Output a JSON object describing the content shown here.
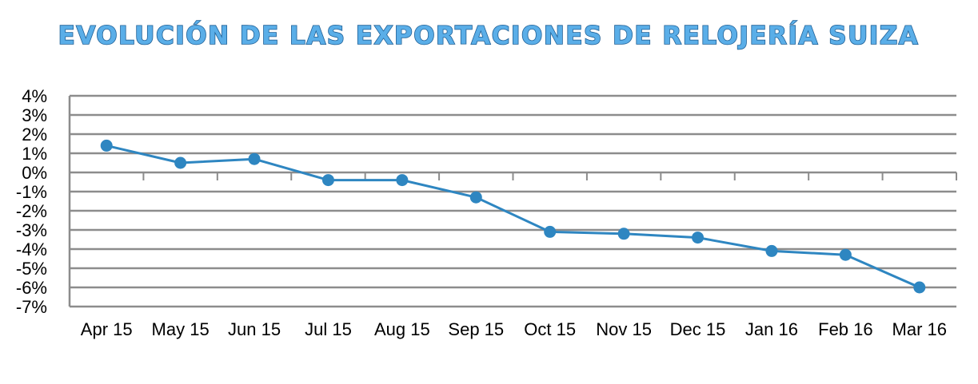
{
  "chart_data": {
    "type": "line",
    "title": "EVOLUCIÓN DE LAS EXPORTACIONES DE RELOJERÍA SUIZA",
    "xlabel": "",
    "ylabel": "",
    "categories": [
      "Apr 15",
      "May 15",
      "Jun 15",
      "Jul 15",
      "Aug 15",
      "Sep 15",
      "Oct 15",
      "Nov 15",
      "Dec 15",
      "Jan 16",
      "Feb 16",
      "Mar 16"
    ],
    "series": [
      {
        "values": [
          1.4,
          0.5,
          0.7,
          -0.4,
          -0.4,
          -1.3,
          -3.1,
          -3.2,
          -3.4,
          -4.1,
          -4.3,
          -6.0
        ]
      }
    ],
    "ylim": [
      -7,
      4
    ],
    "ytick_labels": [
      "4%",
      "3%",
      "2%",
      "1%",
      "0%",
      "-1%",
      "-2%",
      "-3%",
      "-4%",
      "-5%",
      "-6%",
      "-7%"
    ],
    "grid": true,
    "legend": "none",
    "colors": {
      "line": "#2e86c1",
      "title_fill": "#5aaee8",
      "title_outline": "#1f5f95",
      "grid": "#8c8c8c"
    }
  }
}
